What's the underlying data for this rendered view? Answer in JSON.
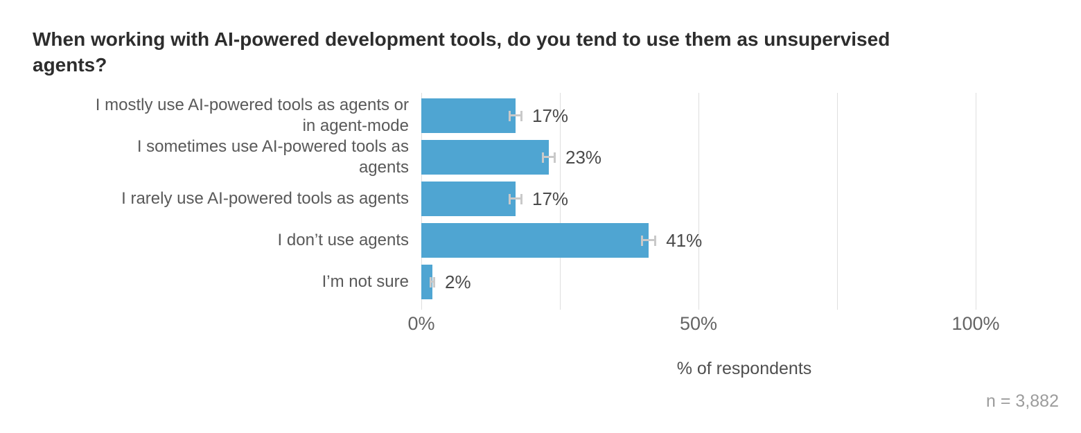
{
  "title": "When working with AI-powered development tools, do you tend to use them as unsupervised agents?",
  "chart_data": {
    "type": "bar",
    "orientation": "horizontal",
    "title": "When working with AI-powered development tools, do you tend to use them as unsupervised agents?",
    "categories": [
      "I mostly use AI-powered tools as agents or in agent-mode",
      "I sometimes use AI-powered tools as agents",
      "I rarely use AI-powered tools as agents",
      "I don’t use agents",
      "I’m not sure"
    ],
    "values": [
      17,
      23,
      17,
      41,
      2
    ],
    "value_labels": [
      "17%",
      "23%",
      "17%",
      "41%",
      "2%"
    ],
    "errors": [
      1.25,
      1.25,
      1.25,
      1.4,
      0.5
    ],
    "xlabel": "% of respondents",
    "ylabel": "",
    "xlim": [
      0,
      100
    ],
    "x_ticks": [
      {
        "value": 0,
        "label": "0%"
      },
      {
        "value": 50,
        "label": "50%"
      },
      {
        "value": 100,
        "label": "100%"
      }
    ],
    "gridline_values": [
      0,
      25,
      50,
      75,
      100
    ],
    "grid": "vertical",
    "legend": "none",
    "sample_size_label": "n = 3,882",
    "bar_color": "#4fa5d2",
    "error_bar_color": "#c9c9c9"
  }
}
